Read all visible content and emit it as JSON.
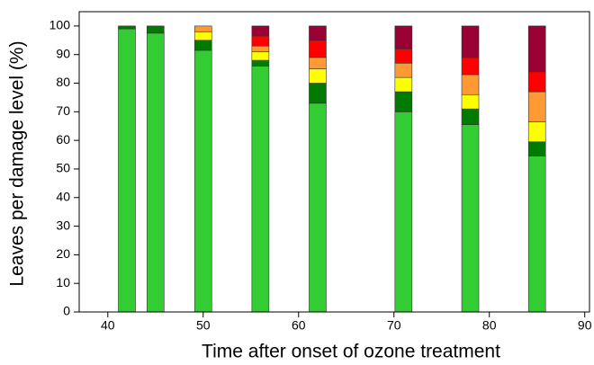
{
  "chart_data": {
    "type": "stacked-bar",
    "x_label": "Time after onset of ozone treatment",
    "y_label": "Leaves per damage level (%)",
    "x": [
      42,
      45,
      50,
      56,
      62,
      71,
      78,
      85
    ],
    "series": [
      {
        "color": "#33cc33",
        "values": [
          99,
          97.5,
          91.5,
          86,
          73,
          70,
          65.5,
          54.5
        ]
      },
      {
        "color": "#007a00",
        "values": [
          1,
          2.5,
          3.5,
          2,
          7,
          7,
          5.5,
          5
        ]
      },
      {
        "color": "#ffff00",
        "values": [
          0,
          0,
          3,
          3,
          5,
          5,
          5,
          7
        ]
      },
      {
        "color": "#ff9933",
        "values": [
          0,
          0,
          2,
          2,
          4,
          5,
          7,
          10.5
        ]
      },
      {
        "color": "#ff0000",
        "values": [
          0,
          0,
          0,
          3.5,
          6,
          5,
          6,
          7
        ]
      },
      {
        "color": "#990033",
        "values": [
          0,
          0,
          0,
          3.5,
          5,
          8,
          11,
          16
        ]
      }
    ],
    "xlim": [
      37,
      90.5
    ],
    "xticks": [
      40,
      50,
      60,
      70,
      80,
      90
    ],
    "ylim": [
      0,
      105
    ],
    "yticks": [
      0,
      10,
      20,
      30,
      40,
      50,
      60,
      70,
      80,
      90,
      100
    ]
  }
}
